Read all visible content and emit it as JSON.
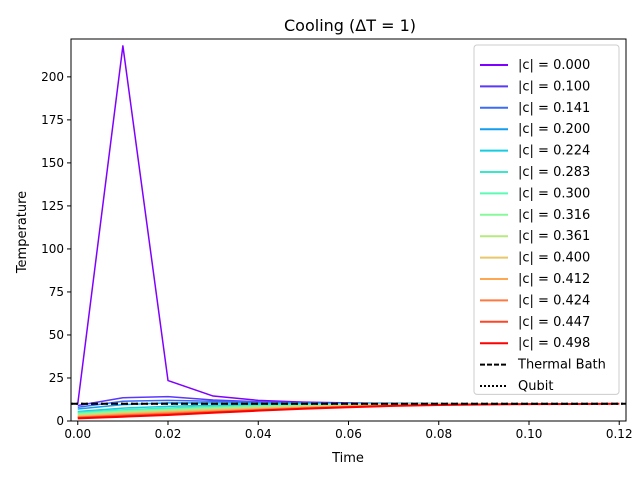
{
  "chart_data": {
    "type": "line",
    "title": "Cooling (ΔT = 1)",
    "xlabel": "Time",
    "ylabel": "Temperature",
    "xlim": [
      -0.0015,
      0.1215
    ],
    "ylim": [
      0,
      222
    ],
    "xticks": [
      0.0,
      0.02,
      0.04,
      0.06,
      0.08,
      0.1,
      0.12
    ],
    "xtick_labels": [
      "0.00",
      "0.02",
      "0.04",
      "0.06",
      "0.08",
      "0.10",
      "0.12"
    ],
    "yticks": [
      0,
      25,
      50,
      75,
      100,
      125,
      150,
      175,
      200
    ],
    "ytick_labels": [
      "0",
      "25",
      "50",
      "75",
      "100",
      "125",
      "150",
      "175",
      "200"
    ],
    "x": [
      0.0,
      0.01,
      0.02,
      0.03,
      0.04,
      0.05,
      0.06,
      0.07,
      0.08,
      0.09,
      0.1,
      0.11,
      0.12
    ],
    "legend_position": "upper right",
    "series": [
      {
        "name": "|c| = 0.000",
        "color": "#8000ff",
        "values": [
          10,
          218,
          23.5,
          14.5,
          12,
          11,
          10.5,
          10.2,
          10.1,
          10,
          10,
          10,
          10
        ]
      },
      {
        "name": "|c| = 0.100",
        "color": "#5a38fd",
        "values": [
          9,
          13.5,
          14.2,
          12.2,
          11.2,
          10.6,
          10.3,
          10.1,
          10,
          10,
          10,
          10,
          10
        ]
      },
      {
        "name": "|c| = 0.141",
        "color": "#3b6cf8",
        "values": [
          8,
          11.5,
          12,
          11.5,
          10.9,
          10.5,
          10.2,
          10.1,
          10,
          10,
          10,
          10,
          10
        ]
      },
      {
        "name": "|c| = 0.200",
        "color": "#129ded",
        "values": [
          7,
          9.5,
          10.5,
          10.5,
          10.4,
          10.2,
          10.1,
          10,
          10,
          10,
          10,
          10,
          10
        ]
      },
      {
        "name": "|c| = 0.224",
        "color": "#16cce0",
        "values": [
          5.5,
          7.5,
          8.5,
          9.2,
          9.6,
          9.8,
          9.9,
          10,
          10,
          10,
          10,
          10,
          10
        ]
      },
      {
        "name": "|c| = 0.283",
        "color": "#38e8cc",
        "values": [
          5,
          6.5,
          7.5,
          8.4,
          9.0,
          9.4,
          9.7,
          9.85,
          9.95,
          10,
          10,
          10,
          10
        ]
      },
      {
        "name": "|c| = 0.300",
        "color": "#5cfbb5",
        "values": [
          4.5,
          6,
          7,
          8,
          8.7,
          9.2,
          9.5,
          9.75,
          9.9,
          9.95,
          10,
          10,
          10
        ]
      },
      {
        "name": "|c| = 0.316",
        "color": "#88f99a",
        "values": [
          4,
          5.5,
          6.5,
          7.5,
          8.3,
          8.9,
          9.3,
          9.6,
          9.8,
          9.9,
          10,
          10,
          10
        ]
      },
      {
        "name": "|c| = 0.361",
        "color": "#b8e880",
        "values": [
          3.5,
          5,
          6,
          7,
          7.9,
          8.6,
          9.1,
          9.5,
          9.7,
          9.85,
          9.95,
          10,
          10
        ]
      },
      {
        "name": "|c| = 0.400",
        "color": "#e8c868",
        "values": [
          3,
          4.5,
          5.5,
          6.5,
          7.4,
          8.2,
          8.8,
          9.3,
          9.6,
          9.8,
          9.9,
          10,
          10
        ]
      },
      {
        "name": "|c| = 0.412",
        "color": "#ffa652",
        "values": [
          2.5,
          4,
          5,
          6,
          7.0,
          7.9,
          8.6,
          9.1,
          9.5,
          9.75,
          9.9,
          10,
          10
        ]
      },
      {
        "name": "|c| = 0.424",
        "color": "#ff7840",
        "values": [
          2.2,
          3.5,
          4.5,
          5.6,
          6.6,
          7.6,
          8.4,
          9.0,
          9.4,
          9.7,
          9.85,
          9.95,
          10
        ]
      },
      {
        "name": "|c| = 0.447",
        "color": "#ff4525",
        "values": [
          2,
          3,
          4,
          5.2,
          6.3,
          7.3,
          8.2,
          8.9,
          9.4,
          9.7,
          9.85,
          9.95,
          10
        ]
      },
      {
        "name": "|c| = 0.498",
        "color": "#ff0000",
        "values": [
          1.5,
          2.5,
          3.5,
          4.8,
          6.0,
          7.1,
          8.0,
          8.8,
          9.3,
          9.6,
          9.8,
          9.9,
          10
        ]
      }
    ],
    "reference_lines": [
      {
        "name": "Thermal Bath",
        "style": "dashed",
        "color": "#000000",
        "value": 10
      },
      {
        "name": "Qubit",
        "style": "dotted",
        "color": "#000000",
        "value": 10
      }
    ]
  }
}
